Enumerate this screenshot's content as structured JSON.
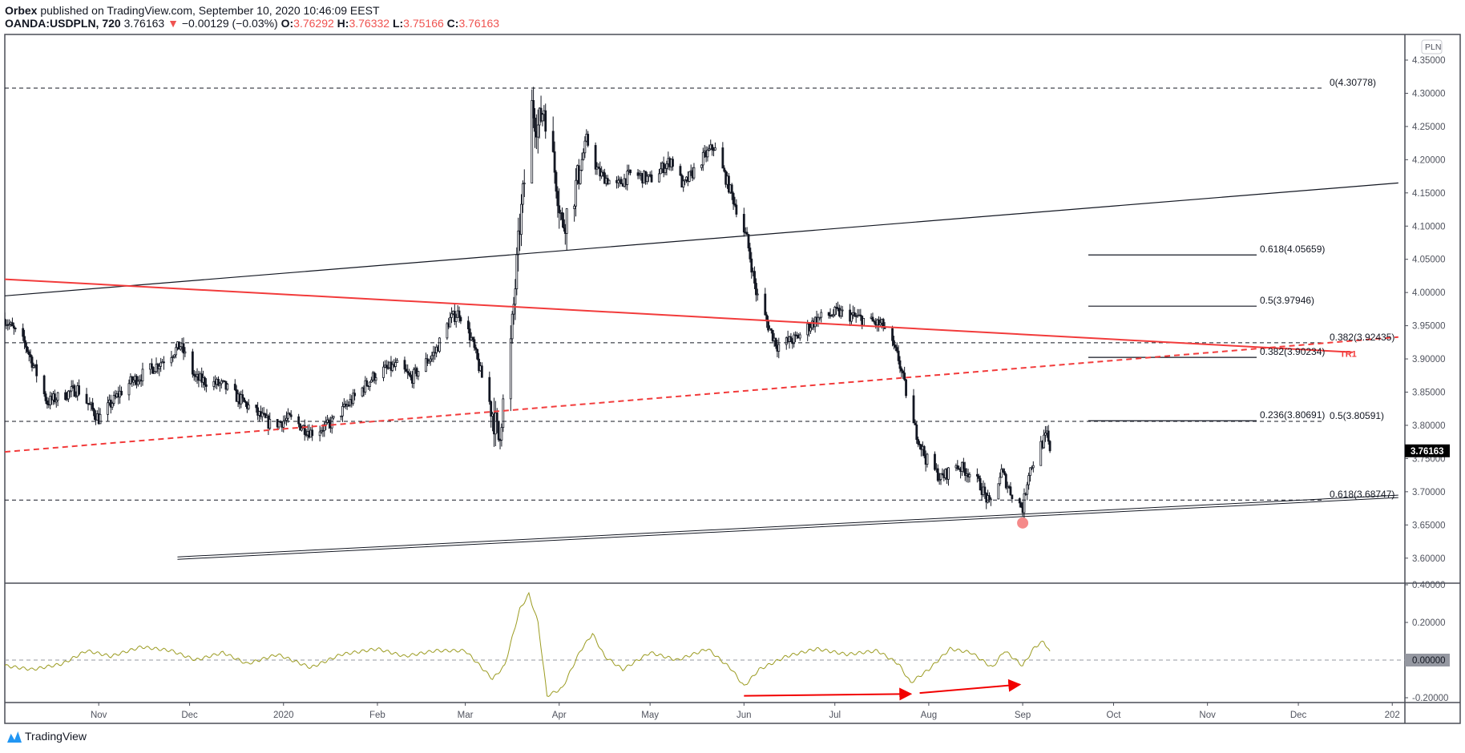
{
  "header": {
    "publisher": "Orbex",
    "published_text": "published on TradingView.com, September 10, 2020 10:46:09 EEST",
    "symbol": "OANDA:USDPLN, 720",
    "last": "3.76163",
    "change_icon": "triangle-down-icon",
    "change": "−0.00129 (−0.03%)",
    "o_label": "O:",
    "o": "3.76292",
    "h_label": "H:",
    "h": "3.76332",
    "l_label": "L:",
    "l": "3.75166",
    "c_label": "C:",
    "c": "3.76163"
  },
  "footer": {
    "logo_text": "TradingView"
  },
  "colors": {
    "accent_red": "#ef5350",
    "trend_red": "#f23b3b",
    "oscillator": "#9c9c22",
    "candle": "#131722",
    "marker": "#f26d6d"
  },
  "chart_data": {
    "type": "candlestick",
    "currency_badge": "PLN",
    "price_axis": {
      "ticks": [
        "4.35000",
        "4.30000",
        "4.25000",
        "4.20000",
        "4.15000",
        "4.10000",
        "4.05000",
        "4.00000",
        "3.95000",
        "3.90000",
        "3.85000",
        "3.80000",
        "3.75000",
        "3.70000",
        "3.65000",
        "3.60000"
      ],
      "range": [
        3.56,
        4.38
      ]
    },
    "last_price_label": "3.76163",
    "time_axis": {
      "labels": [
        {
          "text": "Nov",
          "date": "2019-11-01"
        },
        {
          "text": "Dec",
          "date": "2019-12-01"
        },
        {
          "text": "2020",
          "date": "2020-01-01"
        },
        {
          "text": "Feb",
          "date": "2020-02-01"
        },
        {
          "text": "Mar",
          "date": "2020-03-01"
        },
        {
          "text": "Apr",
          "date": "2020-04-01"
        },
        {
          "text": "May",
          "date": "2020-05-01"
        },
        {
          "text": "Jun",
          "date": "2020-06-01"
        },
        {
          "text": "Jul",
          "date": "2020-07-01"
        },
        {
          "text": "Aug",
          "date": "2020-08-01"
        },
        {
          "text": "Sep",
          "date": "2020-09-01"
        },
        {
          "text": "Oct",
          "date": "2020-10-01"
        },
        {
          "text": "Nov",
          "date": "2020-11-01"
        },
        {
          "text": "Dec",
          "date": "2020-12-01"
        },
        {
          "text": "202",
          "date": "2021-01-01"
        }
      ],
      "range": [
        "2019-10-01",
        "2021-01-03"
      ]
    },
    "price_path": [
      [
        "2019-10-01",
        3.96
      ],
      [
        "2019-10-08",
        3.92
      ],
      [
        "2019-10-15",
        3.835
      ],
      [
        "2019-10-25",
        3.855
      ],
      [
        "2019-11-01",
        3.81
      ],
      [
        "2019-11-10",
        3.86
      ],
      [
        "2019-11-20",
        3.89
      ],
      [
        "2019-11-28",
        3.92
      ],
      [
        "2019-12-03",
        3.87
      ],
      [
        "2019-12-12",
        3.86
      ],
      [
        "2019-12-20",
        3.83
      ],
      [
        "2019-12-28",
        3.8
      ],
      [
        "2020-01-03",
        3.81
      ],
      [
        "2020-01-10",
        3.79
      ],
      [
        "2020-01-16",
        3.8
      ],
      [
        "2020-01-22",
        3.83
      ],
      [
        "2020-02-01",
        3.88
      ],
      [
        "2020-02-08",
        3.89
      ],
      [
        "2020-02-12",
        3.87
      ],
      [
        "2020-02-20",
        3.91
      ],
      [
        "2020-02-25",
        3.96
      ],
      [
        "2020-02-28",
        3.97
      ],
      [
        "2020-03-03",
        3.93
      ],
      [
        "2020-03-06",
        3.88
      ],
      [
        "2020-03-10",
        3.82
      ],
      [
        "2020-03-12",
        3.78
      ],
      [
        "2020-03-16",
        3.92
      ],
      [
        "2020-03-19",
        4.1
      ],
      [
        "2020-03-23",
        4.28
      ],
      [
        "2020-03-25",
        4.25
      ],
      [
        "2020-03-27",
        4.28
      ],
      [
        "2020-03-31",
        4.17
      ],
      [
        "2020-04-02",
        4.1
      ],
      [
        "2020-04-06",
        4.15
      ],
      [
        "2020-04-10",
        4.23
      ],
      [
        "2020-04-14",
        4.18
      ],
      [
        "2020-04-20",
        4.16
      ],
      [
        "2020-04-25",
        4.18
      ],
      [
        "2020-05-01",
        4.17
      ],
      [
        "2020-05-08",
        4.2
      ],
      [
        "2020-05-12",
        4.16
      ],
      [
        "2020-05-18",
        4.2
      ],
      [
        "2020-05-22",
        4.22
      ],
      [
        "2020-05-27",
        4.16
      ],
      [
        "2020-06-02",
        4.08
      ],
      [
        "2020-06-05",
        4.0
      ],
      [
        "2020-06-09",
        3.95
      ],
      [
        "2020-06-12",
        3.92
      ],
      [
        "2020-06-18",
        3.93
      ],
      [
        "2020-06-25",
        3.96
      ],
      [
        "2020-07-02",
        3.97
      ],
      [
        "2020-07-10",
        3.96
      ],
      [
        "2020-07-17",
        3.95
      ],
      [
        "2020-07-22",
        3.9
      ],
      [
        "2020-07-27",
        3.8
      ],
      [
        "2020-07-31",
        3.75
      ],
      [
        "2020-08-05",
        3.72
      ],
      [
        "2020-08-10",
        3.74
      ],
      [
        "2020-08-14",
        3.73
      ],
      [
        "2020-08-18",
        3.71
      ],
      [
        "2020-08-21",
        3.68
      ],
      [
        "2020-08-25",
        3.73
      ],
      [
        "2020-08-28",
        3.7
      ],
      [
        "2020-09-01",
        3.675
      ],
      [
        "2020-09-03",
        3.73
      ],
      [
        "2020-09-07",
        3.77
      ],
      [
        "2020-09-09",
        3.785
      ],
      [
        "2020-09-10",
        3.76163
      ]
    ],
    "fib_levels_dashed": [
      {
        "label": "0(4.30778)",
        "price": 4.30778
      },
      {
        "label": "0.382(3.92435)",
        "price": 3.92435
      },
      {
        "label": "0.5(3.80591)",
        "price": 3.80591
      },
      {
        "label": "0.618(3.68747)",
        "price": 3.68747
      }
    ],
    "fib_levels_solid": [
      {
        "label": "0.618(4.05659)",
        "price": 4.05659
      },
      {
        "label": "0.5(3.97946)",
        "price": 3.97946
      },
      {
        "label": "0.382(3.90234)",
        "price": 3.90234
      },
      {
        "label": "0.236(3.80691)",
        "price": 3.80691
      }
    ],
    "trend_lines": [
      {
        "style": "solid",
        "color": "#131722",
        "from": [
          "2019-10-01",
          3.995
        ],
        "to": [
          "2021-01-03",
          4.165
        ]
      },
      {
        "style": "solid",
        "color": "#f23b3b",
        "from": [
          "2019-10-01",
          4.02
        ],
        "to": [
          "2020-12-19",
          3.91
        ]
      },
      {
        "style": "dashed",
        "color": "#f23b3b",
        "label": "TR1",
        "from": [
          "2019-10-01",
          3.76
        ],
        "to": [
          "2021-01-03",
          3.933
        ]
      },
      {
        "style": "double",
        "color": "#131722",
        "from": [
          "2019-11-27",
          3.6
        ],
        "to": [
          "2021-01-03",
          3.693
        ]
      }
    ],
    "marker": {
      "date": "2020-09-01",
      "price": 3.653
    },
    "oscillator": {
      "ticks": [
        "0.40000",
        "0.20000",
        "0.00000",
        "-0.20000"
      ],
      "range": [
        -0.215,
        0.415
      ],
      "zero_label": "0.00000",
      "values": [
        [
          "2019-10-01",
          -0.03
        ],
        [
          "2019-10-10",
          -0.05
        ],
        [
          "2019-10-20",
          -0.02
        ],
        [
          "2019-10-28",
          0.05
        ],
        [
          "2019-11-05",
          0.02
        ],
        [
          "2019-11-15",
          0.07
        ],
        [
          "2019-11-25",
          0.05
        ],
        [
          "2019-12-03",
          0.0
        ],
        [
          "2019-12-12",
          0.04
        ],
        [
          "2019-12-20",
          -0.02
        ],
        [
          "2019-12-30",
          0.03
        ],
        [
          "2020-01-10",
          -0.04
        ],
        [
          "2020-01-20",
          0.03
        ],
        [
          "2020-02-01",
          0.06
        ],
        [
          "2020-02-10",
          0.02
        ],
        [
          "2020-02-20",
          0.05
        ],
        [
          "2020-03-01",
          0.05
        ],
        [
          "2020-03-10",
          -0.1
        ],
        [
          "2020-03-14",
          -0.03
        ],
        [
          "2020-03-19",
          0.27
        ],
        [
          "2020-03-22",
          0.35
        ],
        [
          "2020-03-25",
          0.2
        ],
        [
          "2020-03-28",
          -0.19
        ],
        [
          "2020-04-02",
          -0.15
        ],
        [
          "2020-04-08",
          0.05
        ],
        [
          "2020-04-12",
          0.14
        ],
        [
          "2020-04-16",
          0.02
        ],
        [
          "2020-04-22",
          -0.05
        ],
        [
          "2020-05-01",
          0.04
        ],
        [
          "2020-05-10",
          0.0
        ],
        [
          "2020-05-20",
          0.06
        ],
        [
          "2020-05-28",
          -0.05
        ],
        [
          "2020-06-01",
          -0.14
        ],
        [
          "2020-06-06",
          -0.05
        ],
        [
          "2020-06-15",
          0.02
        ],
        [
          "2020-06-25",
          0.06
        ],
        [
          "2020-07-05",
          0.03
        ],
        [
          "2020-07-15",
          0.05
        ],
        [
          "2020-07-22",
          -0.02
        ],
        [
          "2020-07-26",
          -0.12
        ],
        [
          "2020-08-01",
          -0.05
        ],
        [
          "2020-08-08",
          0.06
        ],
        [
          "2020-08-15",
          0.04
        ],
        [
          "2020-08-22",
          -0.04
        ],
        [
          "2020-08-26",
          0.05
        ],
        [
          "2020-09-01",
          -0.03
        ],
        [
          "2020-09-05",
          0.07
        ],
        [
          "2020-09-08",
          0.1
        ],
        [
          "2020-09-10",
          0.04
        ]
      ],
      "divergence_arrows": [
        {
          "from": [
            "2020-06-01",
            -0.19
          ],
          "to": [
            "2020-07-26",
            -0.18
          ]
        },
        {
          "from": [
            "2020-07-29",
            -0.175
          ],
          "to": [
            "2020-08-31",
            -0.13
          ]
        }
      ]
    }
  }
}
